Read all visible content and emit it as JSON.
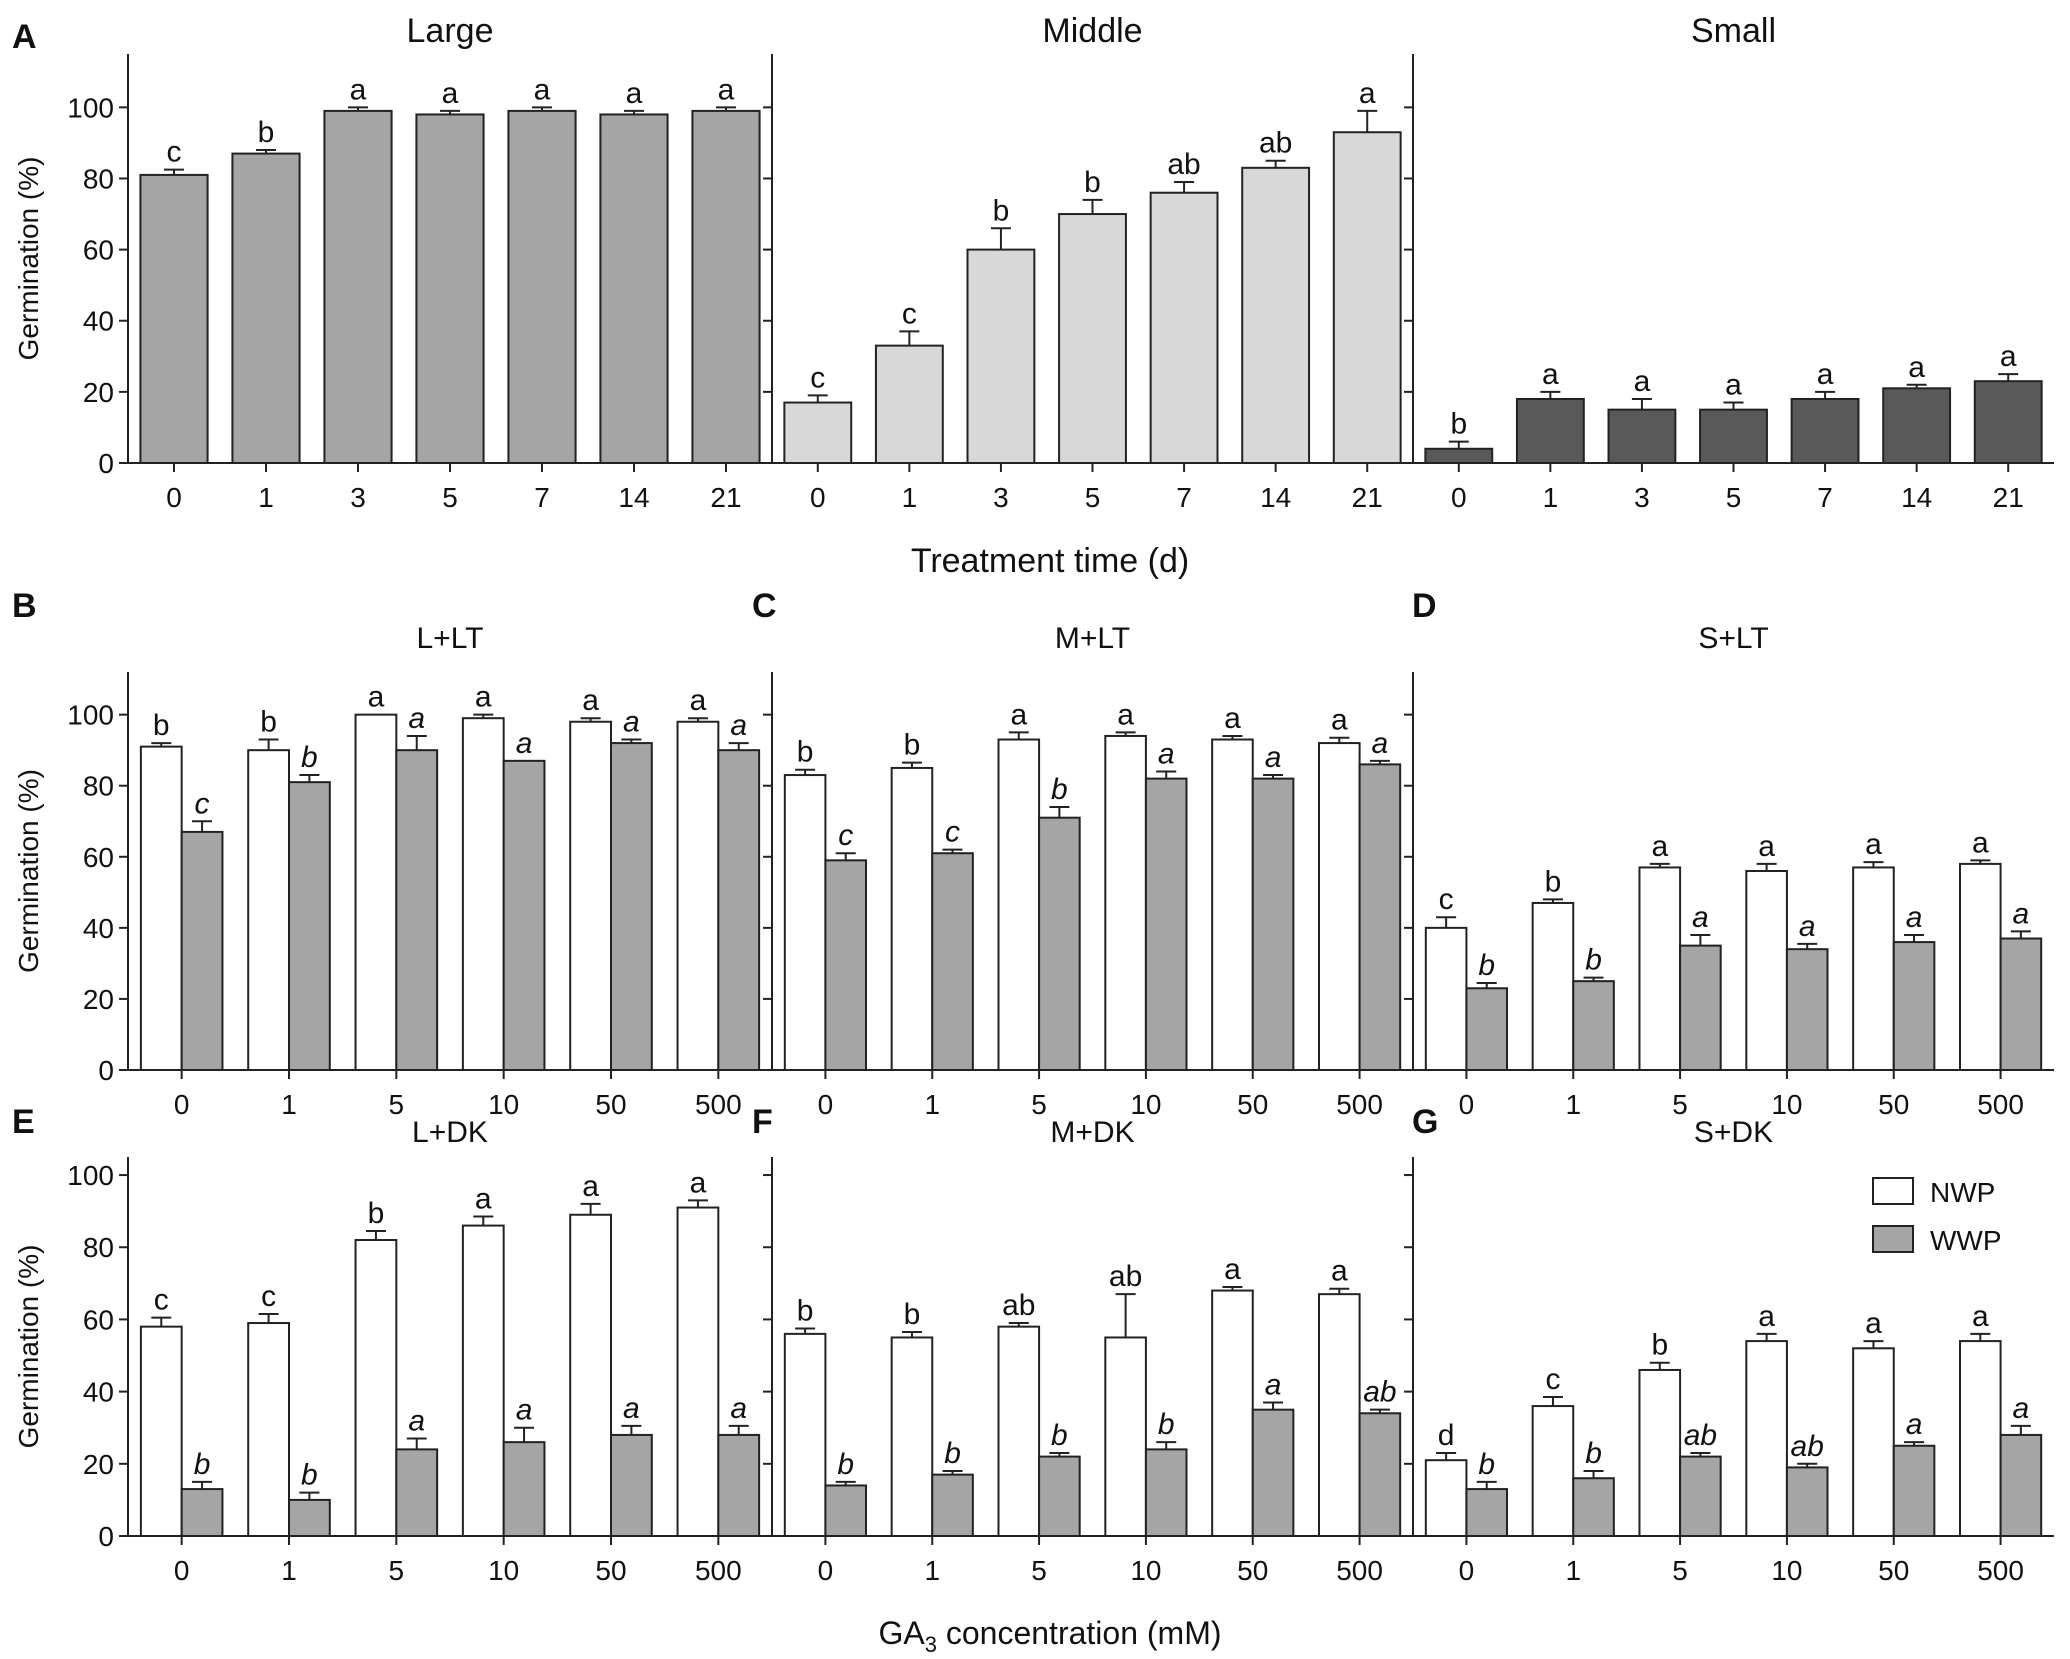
{
  "chart_data": [
    {
      "panel": "A",
      "title": "Large",
      "type": "bar",
      "categories": [
        "0",
        "1",
        "3",
        "5",
        "7",
        "14",
        "21"
      ],
      "series": [
        {
          "name": "Large",
          "color": "#a5a5a5",
          "values": [
            81,
            87,
            99,
            98,
            99,
            98,
            99
          ],
          "errors": [
            1.5,
            1,
            1,
            1,
            1,
            1,
            1
          ],
          "labels": [
            "c",
            "b",
            "a",
            "a",
            "a",
            "a",
            "a"
          ],
          "italic": false
        }
      ],
      "ylabel": "Germination (%)",
      "ylim": [
        0,
        115
      ],
      "yticks": [
        0,
        20,
        40,
        60,
        80,
        100
      ]
    },
    {
      "panel": "",
      "title": "Middle",
      "type": "bar",
      "categories": [
        "0",
        "1",
        "3",
        "5",
        "7",
        "14",
        "21"
      ],
      "series": [
        {
          "name": "Middle",
          "color": "#d8d8d8",
          "values": [
            17,
            33,
            60,
            70,
            76,
            83,
            93
          ],
          "errors": [
            2,
            4,
            6,
            4,
            3,
            2,
            6
          ],
          "labels": [
            "c",
            "c",
            "b",
            "b",
            "ab",
            "ab",
            "a"
          ],
          "italic": false
        }
      ],
      "ylim": [
        0,
        115
      ],
      "yticks": [
        0,
        20,
        40,
        60,
        80,
        100
      ]
    },
    {
      "panel": "",
      "title": "Small",
      "type": "bar",
      "categories": [
        "0",
        "1",
        "3",
        "5",
        "7",
        "14",
        "21"
      ],
      "series": [
        {
          "name": "Small",
          "color": "#595959",
          "values": [
            4,
            18,
            15,
            15,
            18,
            21,
            23
          ],
          "errors": [
            2,
            2,
            3,
            2,
            2,
            1,
            2
          ],
          "labels": [
            "b",
            "a",
            "a",
            "a",
            "a",
            "a",
            "a"
          ],
          "italic": false
        }
      ],
      "xlabel": "Treatment time (d)",
      "ylim": [
        0,
        115
      ],
      "yticks": [
        0,
        20,
        40,
        60,
        80,
        100
      ]
    },
    {
      "panel": "B",
      "title": "L+LT",
      "type": "bar",
      "categories": [
        "0",
        "1",
        "5",
        "10",
        "50",
        "500"
      ],
      "series": [
        {
          "name": "NWP",
          "color": "#ffffff",
          "values": [
            91,
            90,
            100,
            99,
            98,
            98
          ],
          "errors": [
            1,
            3,
            0,
            1,
            1,
            1
          ],
          "labels": [
            "b",
            "b",
            "a",
            "a",
            "a",
            "a"
          ],
          "italic": false
        },
        {
          "name": "WWP",
          "color": "#a5a5a5",
          "values": [
            67,
            81,
            90,
            87,
            92,
            90
          ],
          "errors": [
            3,
            2,
            4,
            0,
            1,
            2
          ],
          "labels": [
            "c",
            "b",
            "a",
            "a",
            "a",
            "a"
          ],
          "italic": true
        }
      ],
      "ylabel": "Germination (%)",
      "ylim": [
        0,
        112
      ],
      "yticks": [
        0,
        20,
        40,
        60,
        80,
        100
      ]
    },
    {
      "panel": "C",
      "title": "M+LT",
      "type": "bar",
      "categories": [
        "0",
        "1",
        "5",
        "10",
        "50",
        "500"
      ],
      "series": [
        {
          "name": "NWP",
          "color": "#ffffff",
          "values": [
            83,
            85,
            93,
            94,
            93,
            92
          ],
          "errors": [
            1.5,
            1.5,
            2,
            1,
            1,
            1.5
          ],
          "labels": [
            "b",
            "b",
            "a",
            "a",
            "a",
            "a"
          ],
          "italic": false
        },
        {
          "name": "WWP",
          "color": "#a5a5a5",
          "values": [
            59,
            61,
            71,
            82,
            82,
            86
          ],
          "errors": [
            2,
            1,
            3,
            2,
            1,
            1
          ],
          "labels": [
            "c",
            "c",
            "b",
            "a",
            "a",
            "a"
          ],
          "italic": true
        }
      ],
      "ylim": [
        0,
        112
      ],
      "yticks": [
        0,
        20,
        40,
        60,
        80,
        100
      ]
    },
    {
      "panel": "D",
      "title": "S+LT",
      "type": "bar",
      "categories": [
        "0",
        "1",
        "5",
        "10",
        "50",
        "500"
      ],
      "series": [
        {
          "name": "NWP",
          "color": "#ffffff",
          "values": [
            40,
            47,
            57,
            56,
            57,
            58
          ],
          "errors": [
            3,
            1,
            1,
            2,
            1.5,
            1
          ],
          "labels": [
            "c",
            "b",
            "a",
            "a",
            "a",
            "a"
          ],
          "italic": false
        },
        {
          "name": "WWP",
          "color": "#a5a5a5",
          "values": [
            23,
            25,
            35,
            34,
            36,
            37
          ],
          "errors": [
            1.5,
            1,
            3,
            1.5,
            2,
            2
          ],
          "labels": [
            "b",
            "b",
            "a",
            "a",
            "a",
            "a"
          ],
          "italic": true
        }
      ],
      "ylim": [
        0,
        112
      ],
      "yticks": [
        0,
        20,
        40,
        60,
        80,
        100
      ]
    },
    {
      "panel": "E",
      "title": "L+DK",
      "type": "bar",
      "categories": [
        "0",
        "1",
        "5",
        "10",
        "50",
        "500"
      ],
      "series": [
        {
          "name": "NWP",
          "color": "#ffffff",
          "values": [
            58,
            59,
            82,
            86,
            89,
            91
          ],
          "errors": [
            2.5,
            2.5,
            2.5,
            2.5,
            3,
            2
          ],
          "labels": [
            "c",
            "c",
            "b",
            "a",
            "a",
            "a"
          ],
          "italic": false
        },
        {
          "name": "WWP",
          "color": "#a5a5a5",
          "values": [
            13,
            10,
            24,
            26,
            28,
            28
          ],
          "errors": [
            2,
            2,
            3,
            4,
            2.5,
            2.5
          ],
          "labels": [
            "b",
            "b",
            "a",
            "a",
            "a",
            "a"
          ],
          "italic": true
        }
      ],
      "ylabel": "Germination (%)",
      "ylim": [
        0,
        105
      ],
      "yticks": [
        0,
        20,
        40,
        60,
        80,
        100
      ]
    },
    {
      "panel": "F",
      "title": "M+DK",
      "type": "bar",
      "categories": [
        "0",
        "1",
        "5",
        "10",
        "50",
        "500"
      ],
      "series": [
        {
          "name": "NWP",
          "color": "#ffffff",
          "values": [
            56,
            55,
            58,
            55,
            68,
            67
          ],
          "errors": [
            1.5,
            1.5,
            1,
            12,
            1,
            1.5
          ],
          "labels": [
            "b",
            "b",
            "ab",
            "ab",
            "a",
            "a"
          ],
          "italic": false
        },
        {
          "name": "WWP",
          "color": "#a5a5a5",
          "values": [
            14,
            17,
            22,
            24,
            35,
            34
          ],
          "errors": [
            1,
            1,
            1,
            2,
            2,
            1
          ],
          "labels": [
            "b",
            "b",
            "b",
            "b",
            "a",
            "ab"
          ],
          "italic": true
        }
      ],
      "xlabel": "GA3 concentration (mM)",
      "ylim": [
        0,
        105
      ],
      "yticks": [
        0,
        20,
        40,
        60,
        80,
        100
      ]
    },
    {
      "panel": "G",
      "title": "S+DK",
      "type": "bar",
      "categories": [
        "0",
        "1",
        "5",
        "10",
        "50",
        "500"
      ],
      "series": [
        {
          "name": "NWP",
          "color": "#ffffff",
          "values": [
            21,
            36,
            46,
            54,
            52,
            54
          ],
          "errors": [
            2,
            2.5,
            2,
            2,
            2,
            2
          ],
          "labels": [
            "d",
            "c",
            "b",
            "a",
            "a",
            "a"
          ],
          "italic": false
        },
        {
          "name": "WWP",
          "color": "#a5a5a5",
          "values": [
            13,
            16,
            22,
            19,
            25,
            28
          ],
          "errors": [
            2,
            2,
            1,
            1,
            1,
            2.5
          ],
          "labels": [
            "b",
            "b",
            "ab",
            "ab",
            "a",
            "a"
          ],
          "italic": true
        }
      ],
      "ylim": [
        0,
        105
      ],
      "yticks": [
        0,
        20,
        40,
        60,
        80,
        100
      ],
      "legend": {
        "position": "top-right",
        "entries": [
          "NWP",
          "WWP"
        ]
      }
    }
  ],
  "labels": {
    "xlabel_top": "Treatment time (d)",
    "xlabel_bottom_prefix": "GA",
    "xlabel_bottom_sub": "3",
    "xlabel_bottom_suffix": " concentration (mM)"
  }
}
